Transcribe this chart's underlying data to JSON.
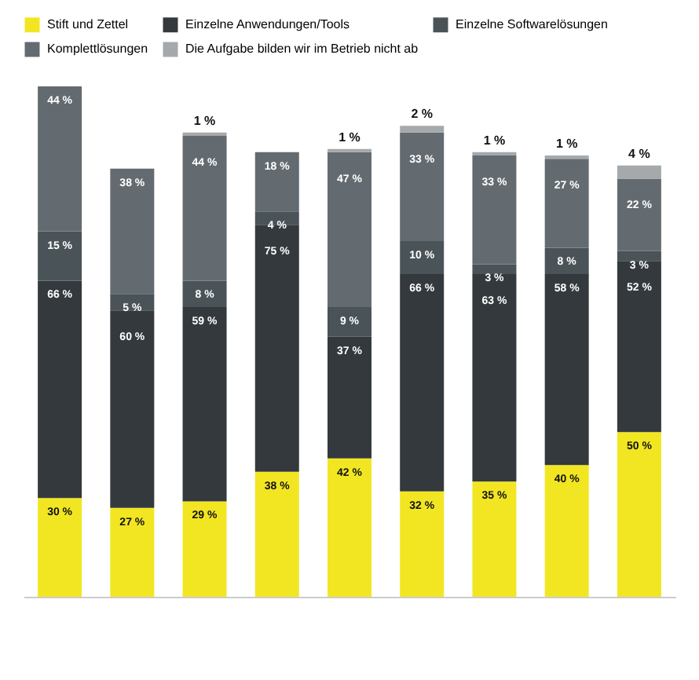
{
  "chart_data": {
    "type": "bar",
    "stacked": true,
    "legend": "top",
    "tick_labels": false,
    "categories": [
      null,
      null,
      null,
      null,
      null,
      null,
      null,
      null,
      null
    ],
    "series": [
      {
        "name": "Stift und Zettel",
        "color": "#f2e622",
        "values": [
          30,
          27,
          29,
          38,
          42,
          32,
          35,
          40,
          50
        ],
        "value_labels": [
          "30 %",
          "27 %",
          "29 %",
          "38 %",
          "42 %",
          "32 %",
          "35 %",
          "40 %",
          "50 %"
        ]
      },
      {
        "name": "Einzelne Anwendungen/Tools",
        "color": "#33393c",
        "values": [
          66,
          60,
          59,
          75,
          37,
          66,
          63,
          58,
          52
        ],
        "value_labels": [
          "66 %",
          "60 %",
          "59 %",
          "75 %",
          "37 %",
          "66 %",
          "63 %",
          "58 %",
          "52 %"
        ]
      },
      {
        "name": "Einzelne Softwarelösungen",
        "color": "#4a5358",
        "values": [
          15,
          5,
          8,
          4,
          9,
          10,
          3,
          8,
          3
        ],
        "value_labels": [
          "15 %",
          "5 %",
          "8 %",
          "4 %",
          "9 %",
          "10 %",
          "3 %",
          "8 %",
          "3 %"
        ]
      },
      {
        "name": "Komplettlösungen",
        "color": "#646b70",
        "values": [
          44,
          38,
          44,
          18,
          47,
          33,
          33,
          27,
          22
        ],
        "value_labels": [
          "44 %",
          "38 %",
          "44 %",
          "18 %",
          "47 %",
          "33 %",
          "33 %",
          "27 %",
          "22 %"
        ]
      },
      {
        "name": "Die Aufgabe bilden wir im Betrieb nicht ab",
        "color": "#a5a9ab",
        "values": [
          null,
          null,
          1,
          null,
          1,
          2,
          1,
          1,
          4
        ],
        "value_labels": [
          null,
          null,
          "1 %",
          null,
          "1 %",
          "2 %",
          "1 %",
          "1 %",
          "4 %"
        ]
      }
    ]
  }
}
